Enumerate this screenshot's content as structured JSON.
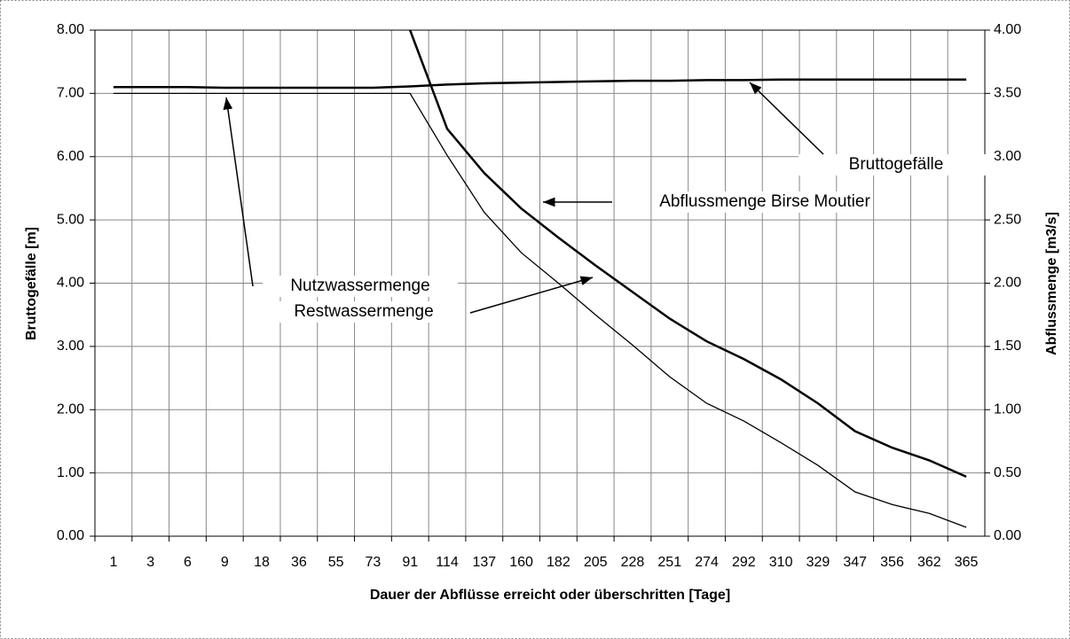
{
  "chart_data": {
    "type": "line",
    "xlabel": "Dauer der Abflüsse erreicht oder überschritten [Tage]",
    "ylabel": "Bruttogefälle [m]",
    "y2label": "Abflussmenge [m3/s]",
    "categories": [
      "1",
      "3",
      "6",
      "9",
      "18",
      "36",
      "55",
      "73",
      "91",
      "114",
      "137",
      "160",
      "182",
      "205",
      "228",
      "251",
      "274",
      "292",
      "310",
      "329",
      "347",
      "356",
      "362",
      "365"
    ],
    "series": [
      {
        "name": "Bruttogefälle",
        "color": "#000000",
        "axis": "y",
        "values": [
          7.1,
          7.1,
          7.1,
          7.09,
          7.09,
          7.09,
          7.09,
          7.09,
          7.11,
          7.14,
          7.16,
          7.17,
          7.18,
          7.19,
          7.2,
          7.2,
          7.21,
          7.21,
          7.22,
          7.22,
          7.22,
          7.22,
          7.22,
          7.22
        ]
      },
      {
        "name": "Abflussmenge Birse Moutier",
        "color": "#000000",
        "axis": "y2",
        "values": [
          null,
          null,
          null,
          null,
          null,
          null,
          null,
          null,
          4.0,
          3.22,
          2.87,
          2.59,
          2.36,
          2.14,
          1.93,
          1.72,
          1.54,
          1.4,
          1.24,
          1.05,
          0.83,
          0.7,
          0.6,
          0.47
        ]
      },
      {
        "name": "Nutzwassermenge",
        "color": "#000000",
        "axis": "y2",
        "values": [
          3.5,
          3.5,
          3.5,
          3.5,
          3.5,
          3.5,
          3.5,
          3.5,
          3.5,
          3.01,
          2.56,
          2.24,
          2.0,
          1.75,
          1.51,
          1.26,
          1.05,
          0.91,
          0.74,
          0.56,
          0.35,
          0.25,
          0.18,
          0.07
        ]
      }
    ],
    "annotations": [
      "Restwassermenge"
    ],
    "ylim": [
      0,
      8
    ],
    "yticks": [
      {
        "value": 0,
        "label": "0.00"
      },
      {
        "value": 1,
        "label": "1.00"
      },
      {
        "value": 2,
        "label": "2.00"
      },
      {
        "value": 3,
        "label": "3.00"
      },
      {
        "value": 4,
        "label": "4.00"
      },
      {
        "value": 5,
        "label": "5.00"
      },
      {
        "value": 6,
        "label": "6.00"
      },
      {
        "value": 7,
        "label": "7.00"
      },
      {
        "value": 8,
        "label": "8.00"
      }
    ],
    "y2lim": [
      0,
      4
    ],
    "y2ticks": [
      {
        "value": 0,
        "label": "0.00"
      },
      {
        "value": 0.5,
        "label": "0.50"
      },
      {
        "value": 1,
        "label": "1.00"
      },
      {
        "value": 1.5,
        "label": "1.50"
      },
      {
        "value": 2,
        "label": "2.00"
      },
      {
        "value": 2.5,
        "label": "2.50"
      },
      {
        "value": 3,
        "label": "3.00"
      },
      {
        "value": 3.5,
        "label": "3.50"
      },
      {
        "value": 4,
        "label": "4.00"
      }
    ],
    "grid": true
  }
}
